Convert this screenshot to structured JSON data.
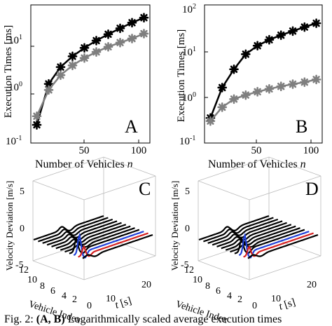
{
  "chart_data": [
    {
      "type": "line",
      "panel_label": "A",
      "xlabel": "Number of Vehicles n",
      "ylabel": "Execution Times [ms]",
      "log_y": true,
      "xlim": [
        5,
        105
      ],
      "ylim": [
        0.1,
        40
      ],
      "x_ticks": [
        "50",
        "100"
      ],
      "y_ticks": [
        "10^-1",
        "10^0",
        "10^1"
      ],
      "x": [
        10,
        20,
        30,
        40,
        50,
        60,
        70,
        80,
        90,
        100
      ],
      "series": [
        {
          "color": "#000000",
          "marker": "asterisk",
          "values": [
            0.22,
            1.3,
            2.7,
            4.3,
            6.2,
            8.5,
            11.2,
            14.5,
            18.5,
            23
          ]
        },
        {
          "color": "#7f7f7f",
          "marker": "asterisk",
          "values": [
            0.32,
            1.0,
            1.9,
            2.9,
            4.0,
            5.2,
            6.5,
            7.8,
            9.3,
            11.5
          ]
        }
      ]
    },
    {
      "type": "line",
      "panel_label": "B",
      "xlabel": "Number of Vehicles n",
      "ylabel": "Execution Times [ms]",
      "log_y": true,
      "xlim": [
        5,
        105
      ],
      "ylim": [
        0.1,
        100
      ],
      "x_ticks": [
        "50",
        "100"
      ],
      "y_ticks": [
        "10^-1",
        "10^0",
        "10^1",
        "10^2"
      ],
      "x": [
        10,
        20,
        30,
        40,
        50,
        60,
        70,
        80,
        90,
        100
      ],
      "series": [
        {
          "color": "#000000",
          "marker": "asterisk",
          "values": [
            0.35,
            1.6,
            4.0,
            8.5,
            13.0,
            17.5,
            22.0,
            27.0,
            33.0,
            40.0
          ]
        },
        {
          "color": "#7f7f7f",
          "marker": "asterisk",
          "values": [
            0.3,
            0.6,
            0.9,
            1.1,
            1.3,
            1.5,
            1.7,
            1.9,
            2.1,
            2.4
          ]
        }
      ]
    },
    {
      "type": "line",
      "panel_label": "C",
      "chart_kind": "3d-waterfall",
      "xlabel": "t [s]",
      "ylabel": "Vehicle Index",
      "zlabel": "Velocity Deviation [m/s]",
      "t_ticks": [
        "0",
        "10",
        "20"
      ],
      "index_ticks": [
        "2",
        "4",
        "6",
        "8",
        "10",
        "12"
      ],
      "z_ticks": [
        "-5",
        "0",
        "5"
      ],
      "traces": 12,
      "highlight": [
        {
          "index": 2,
          "color": "#d42020"
        },
        {
          "index": 3,
          "color": "#1f3fd8"
        }
      ]
    },
    {
      "type": "line",
      "panel_label": "D",
      "chart_kind": "3d-waterfall",
      "xlabel": "t [s]",
      "ylabel": "Vehicle Index",
      "zlabel": "Velocity Deviation [m/s]",
      "t_ticks": [
        "0",
        "10",
        "20"
      ],
      "index_ticks": [
        "2",
        "4",
        "6",
        "8",
        "10",
        "12"
      ],
      "z_ticks": [
        "-5",
        "0",
        "5"
      ],
      "traces": 12,
      "highlight": [
        {
          "index": 2,
          "color": "#d42020"
        },
        {
          "index": 3,
          "color": "#1f3fd8"
        }
      ]
    }
  ],
  "labels": {
    "panel_a": "A",
    "panel_b": "B",
    "panel_c": "C",
    "panel_d": "D",
    "ylabel_exec": "Execution Times [ms]",
    "xlabel_vehicles": "Number of Vehicles",
    "xlabel_var": "n",
    "x50": "50",
    "x100": "100",
    "ylabel_vel": "Velocity Deviation [m/s]",
    "ylabel_idx": "Vehicle Index",
    "t_var": "t",
    "t_unit": "[s]",
    "z5": "5",
    "z0": "0",
    "zm5": "-5",
    "i12": "12",
    "i10": "10",
    "i8": "8",
    "i6": "6",
    "i4": "4",
    "i2": "2",
    "t0": "0",
    "t10": "10",
    "t20": "20",
    "pow_base": "10",
    "pow_m1": "-1",
    "pow_0": "0",
    "pow_1": "1",
    "pow_2": "2"
  },
  "caption": {
    "prefix": "Fig. 2: ",
    "bold": "(A, B)",
    "rest": " Logarithmically scaled average execution times"
  }
}
